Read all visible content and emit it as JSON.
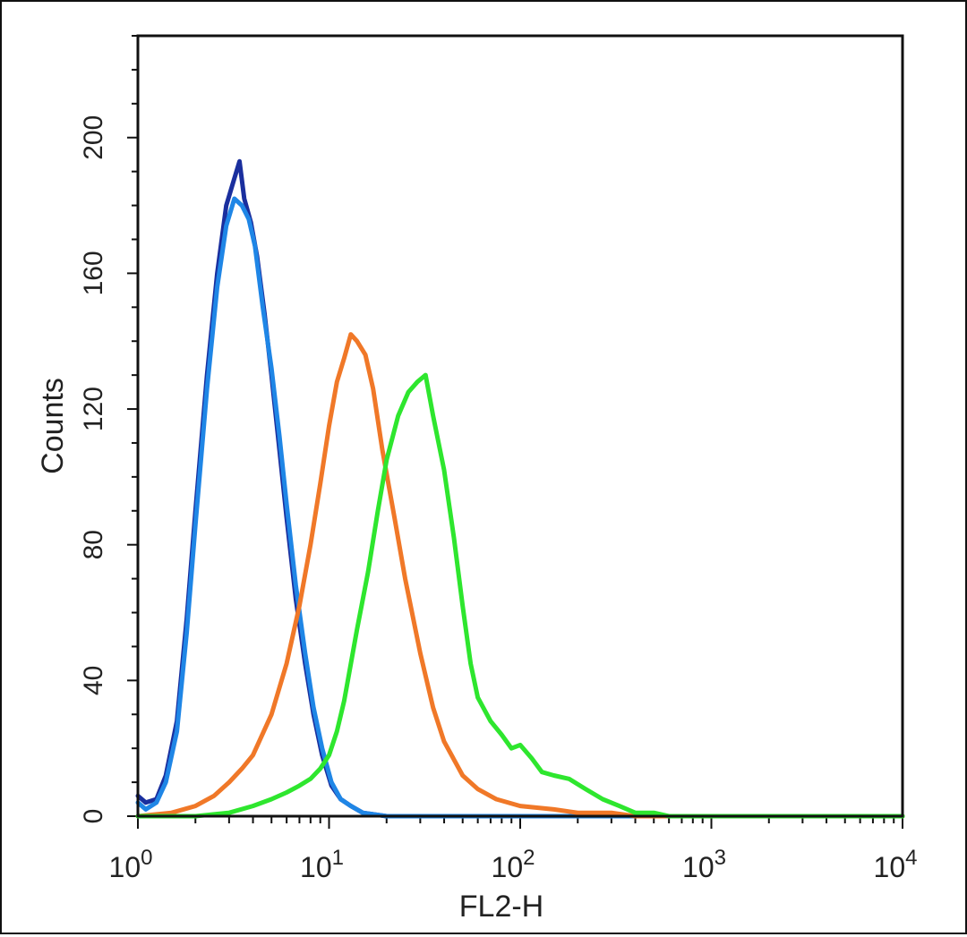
{
  "chart_data": {
    "type": "line",
    "xlabel": "FL2-H",
    "ylabel": "Counts",
    "x_scale": "log",
    "xlim": [
      1,
      10000
    ],
    "ylim": [
      0,
      230
    ],
    "grid": false,
    "x_ticks": [
      {
        "value": 1,
        "base": "10",
        "exp": "0"
      },
      {
        "value": 10,
        "base": "10",
        "exp": "1"
      },
      {
        "value": 100,
        "base": "10",
        "exp": "2"
      },
      {
        "value": 1000,
        "base": "10",
        "exp": "3"
      },
      {
        "value": 10000,
        "base": "10",
        "exp": "4"
      }
    ],
    "y_ticks": [
      {
        "value": 0,
        "label": "0"
      },
      {
        "value": 40,
        "label": "40"
      },
      {
        "value": 80,
        "label": "80"
      },
      {
        "value": 120,
        "label": "120"
      },
      {
        "value": 160,
        "label": "160"
      },
      {
        "value": 200,
        "label": "200"
      }
    ],
    "series": [
      {
        "color": "#1a2f9e",
        "x": [
          1.0,
          1.1,
          1.25,
          1.4,
          1.6,
          1.8,
          2.0,
          2.3,
          2.6,
          2.9,
          3.2,
          3.4,
          3.6,
          3.9,
          4.2,
          4.6,
          5.0,
          5.5,
          6.0,
          6.7,
          7.5,
          8.3,
          9.2,
          10.3,
          11.5,
          13.0,
          15.0,
          20.0,
          50.0,
          10000.0
        ],
        "y": [
          6,
          4,
          5,
          12,
          28,
          58,
          90,
          130,
          160,
          180,
          188,
          193,
          182,
          175,
          165,
          148,
          130,
          108,
          88,
          64,
          45,
          30,
          18,
          9,
          5,
          3,
          1,
          0,
          0,
          0
        ]
      },
      {
        "color": "#1f86e6",
        "x": [
          1.0,
          1.1,
          1.25,
          1.4,
          1.6,
          1.8,
          2.0,
          2.3,
          2.6,
          2.9,
          3.2,
          3.5,
          3.8,
          4.1,
          4.5,
          5.0,
          5.5,
          6.0,
          6.7,
          7.5,
          8.3,
          9.2,
          10.3,
          11.5,
          13.0,
          15.0,
          20.0,
          50.0,
          10000.0
        ],
        "y": [
          4,
          2,
          4,
          10,
          25,
          54,
          86,
          126,
          156,
          174,
          182,
          180,
          176,
          168,
          150,
          132,
          112,
          92,
          68,
          48,
          32,
          20,
          10,
          5,
          3,
          1,
          0,
          0,
          0
        ]
      },
      {
        "color": "#f07828",
        "x": [
          1.0,
          1.5,
          2.0,
          2.5,
          3.0,
          3.5,
          4.0,
          5.0,
          6.0,
          7.0,
          8.0,
          9.0,
          10.0,
          11.0,
          12.0,
          13.0,
          14.0,
          15.5,
          17.0,
          19.0,
          22.0,
          25.0,
          30.0,
          35.0,
          40.0,
          50.0,
          60.0,
          75.0,
          100.0,
          150.0,
          200.0,
          300.0,
          400.0,
          10000.0
        ],
        "y": [
          0,
          1,
          3,
          6,
          10,
          14,
          18,
          30,
          45,
          62,
          80,
          98,
          115,
          128,
          135,
          142,
          140,
          136,
          126,
          108,
          88,
          70,
          48,
          32,
          22,
          12,
          8,
          5,
          3,
          2,
          1,
          1,
          0,
          0
        ]
      },
      {
        "color": "#2ee62e",
        "x": [
          1.0,
          2.0,
          3.0,
          4.0,
          5.0,
          6.0,
          7.0,
          8.0,
          9.0,
          10.0,
          11.0,
          12.0,
          14.0,
          16.0,
          18.0,
          20.0,
          23.0,
          26.0,
          29.0,
          32.0,
          35.0,
          40.0,
          45.0,
          50.0,
          55.0,
          60.0,
          70.0,
          80.0,
          90.0,
          100.0,
          115.0,
          130.0,
          150.0,
          180.0,
          220.0,
          270.0,
          330.0,
          400.0,
          500.0,
          600.0,
          10000.0
        ],
        "y": [
          0,
          0,
          1,
          3,
          5,
          7,
          9,
          11,
          14,
          18,
          25,
          34,
          55,
          72,
          90,
          105,
          118,
          125,
          128,
          130,
          118,
          102,
          82,
          62,
          45,
          35,
          28,
          24,
          20,
          21,
          17,
          13,
          12,
          11,
          8,
          5,
          3,
          1,
          1,
          0,
          0
        ]
      }
    ]
  }
}
